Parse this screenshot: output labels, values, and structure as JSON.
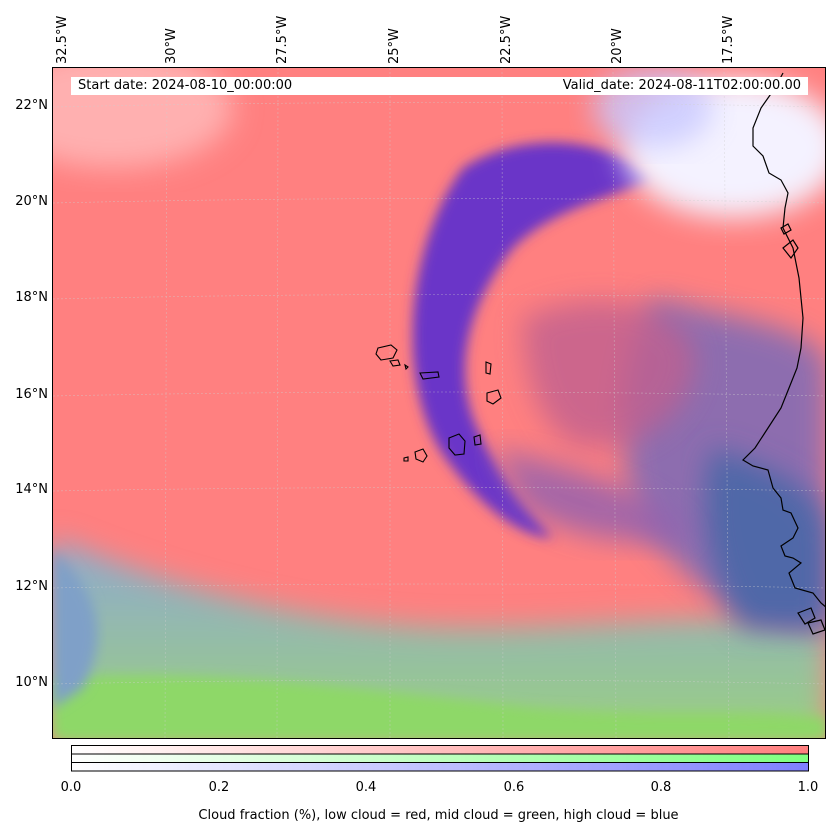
{
  "map": {
    "start_date": "Start date: 2024-08-10_00:00:00",
    "valid_date": "Valid_date: 2024-08-11T02:00:00.00",
    "lon_labels": [
      "32.5°W",
      "30°W",
      "27.5°W",
      "25°W",
      "22.5°W",
      "20°W",
      "17.5°W"
    ],
    "lat_labels": [
      "22°N",
      "20°N",
      "18°N",
      "16°N",
      "14°N",
      "12°N",
      "10°N"
    ],
    "layers": {
      "low_cloud_color": "#ff7f7f",
      "mid_cloud_color": "#80e060",
      "high_cloud_color": "#6633cc"
    }
  },
  "colorbar": {
    "ticks": [
      "0.0",
      "0.2",
      "0.4",
      "0.6",
      "0.8",
      "1.0"
    ],
    "label": "Cloud fraction (%), low cloud = red, mid cloud = green, high cloud = blue",
    "colors": {
      "red": "#ff7f7f",
      "green": "#7fff7f",
      "blue": "#7f7fff"
    }
  }
}
